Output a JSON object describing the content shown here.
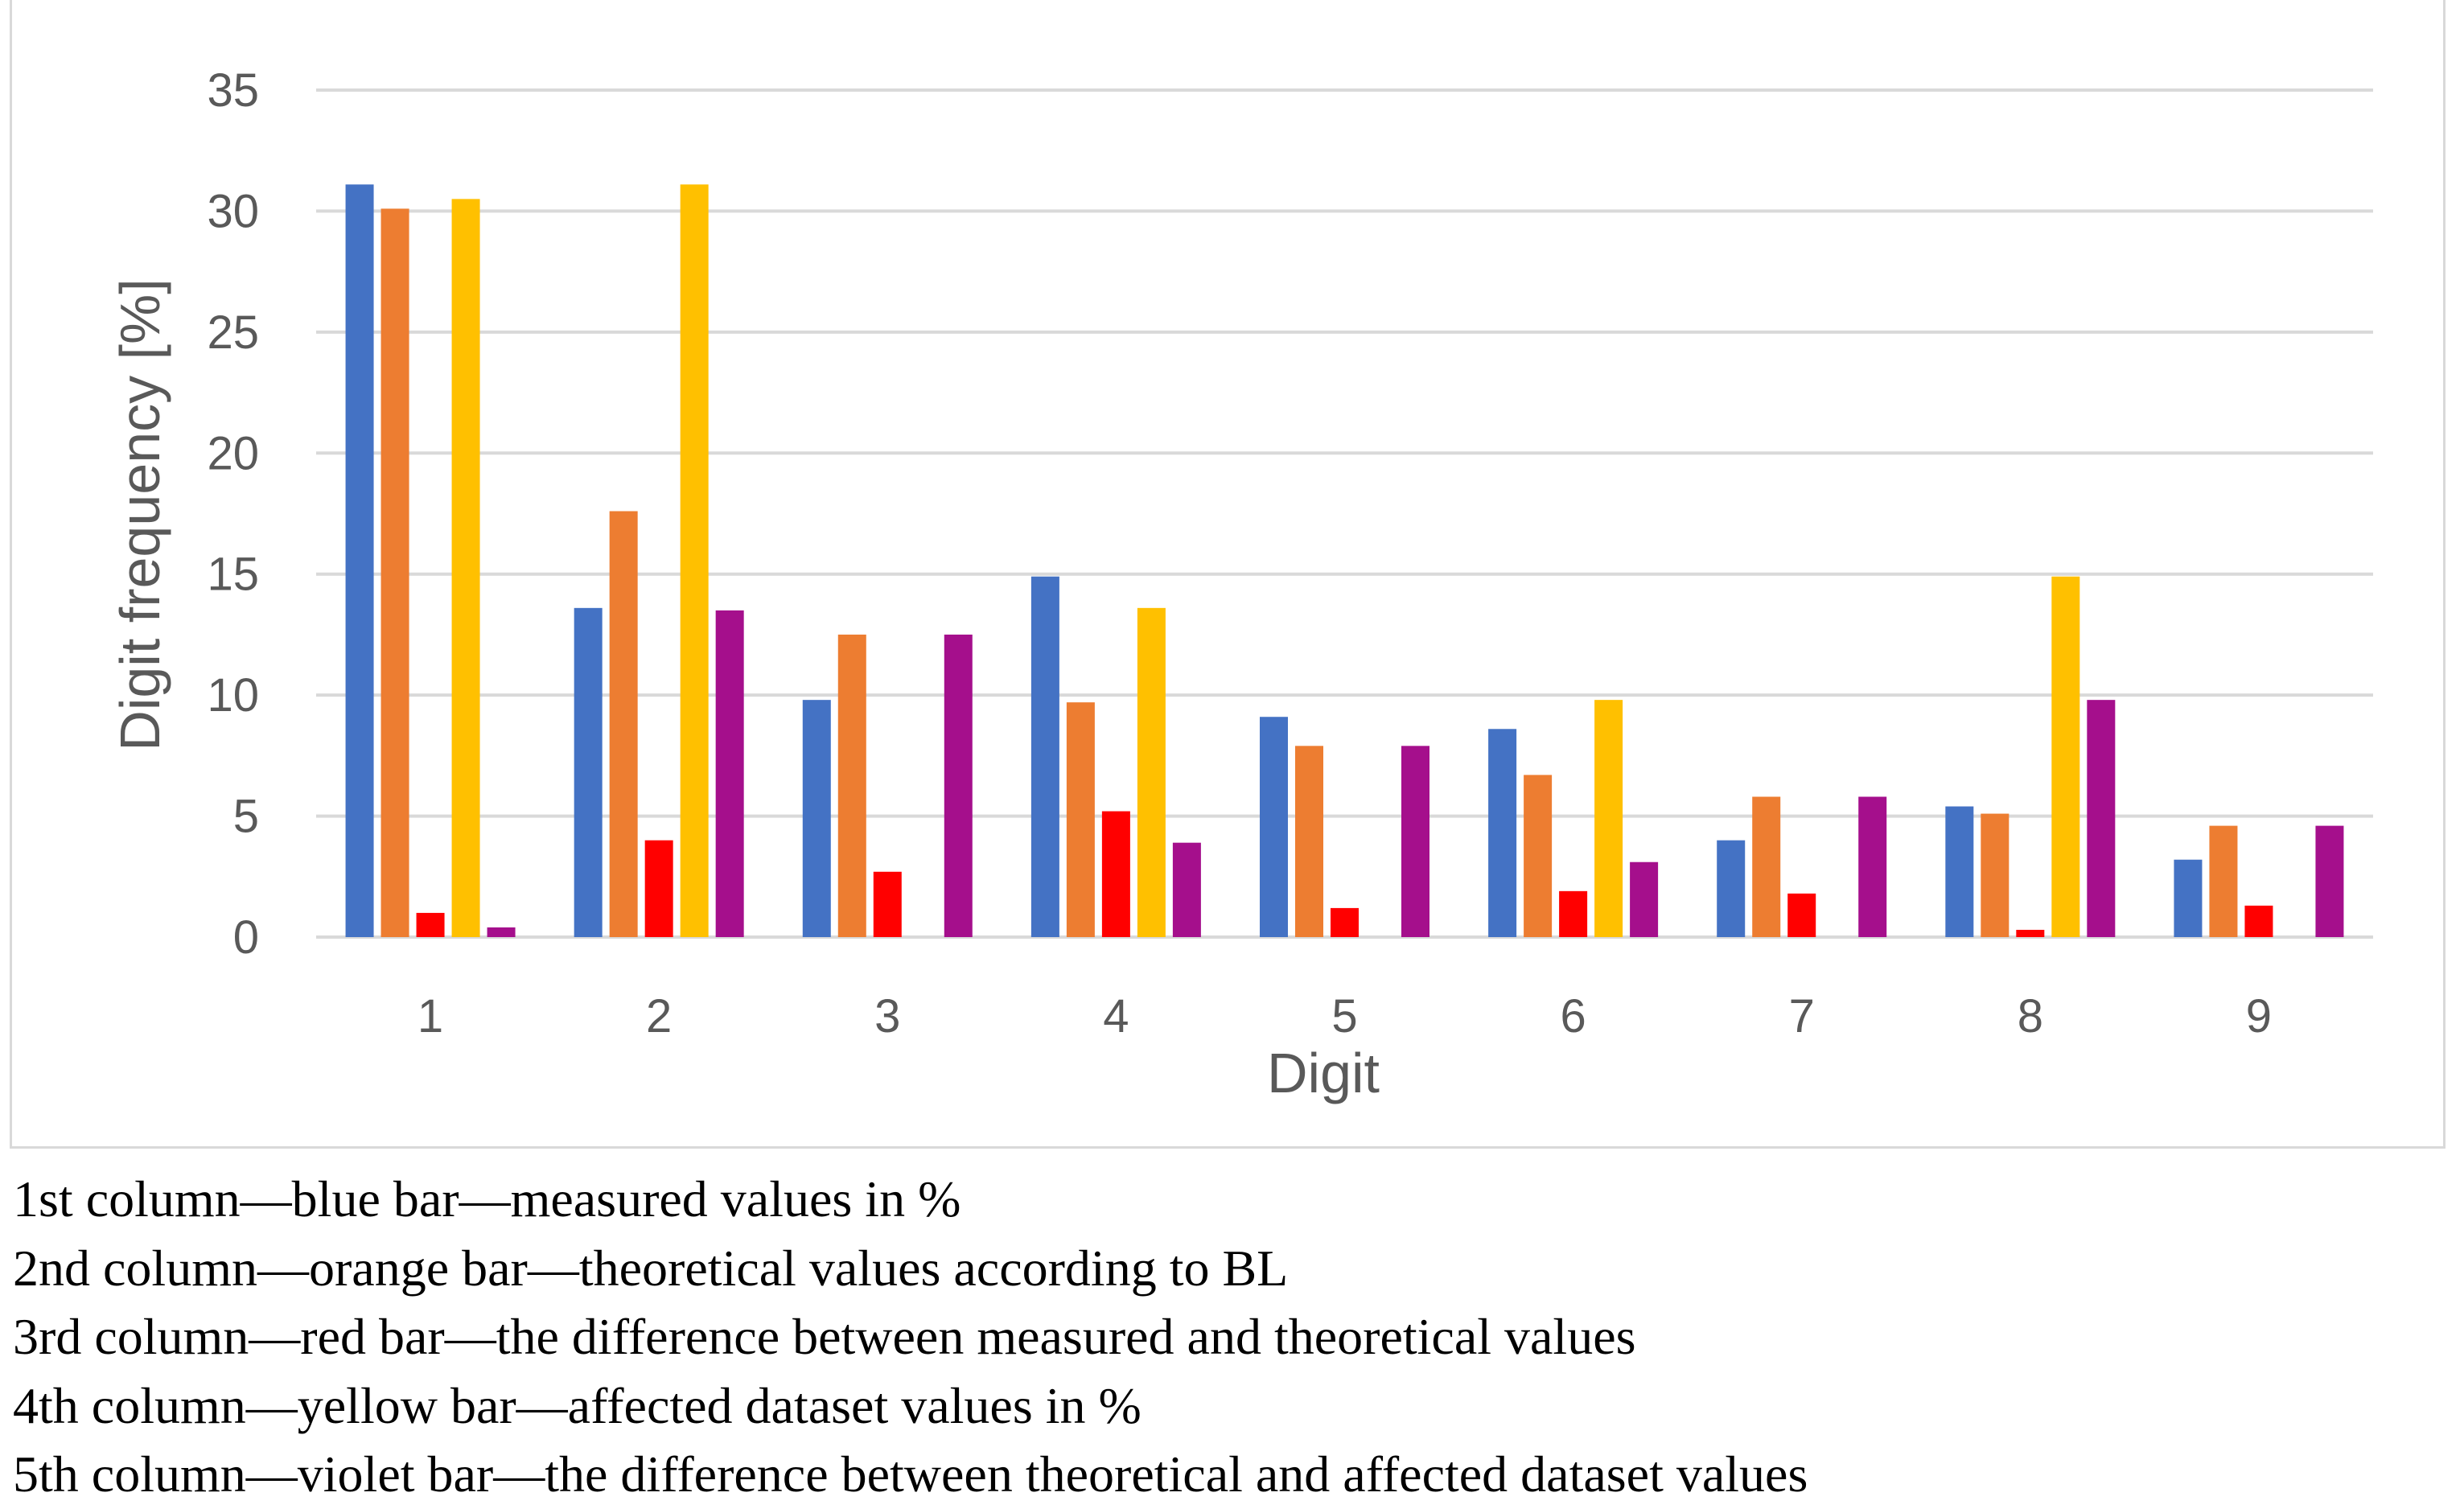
{
  "chart_data": {
    "type": "bar",
    "xlabel": "Digit",
    "ylabel": "Digit frequency [%]",
    "ylim": [
      0,
      35
    ],
    "yticks": [
      0,
      5,
      10,
      15,
      20,
      25,
      30,
      35
    ],
    "grid": true,
    "categories": [
      "1",
      "2",
      "3",
      "4",
      "5",
      "6",
      "7",
      "8",
      "9"
    ],
    "series": [
      {
        "name": "measured values in %",
        "color": "#4472c4",
        "values": [
          31.1,
          13.6,
          9.8,
          14.9,
          9.1,
          8.6,
          4.0,
          5.4,
          3.2
        ]
      },
      {
        "name": "theoretical values according to BL",
        "color": "#ed7d31",
        "values": [
          30.1,
          17.6,
          12.5,
          9.7,
          7.9,
          6.7,
          5.8,
          5.1,
          4.6
        ]
      },
      {
        "name": "the difference between measured and theoretical values",
        "color": "#ff0000",
        "values": [
          1.0,
          4.0,
          2.7,
          5.2,
          1.2,
          1.9,
          1.8,
          0.3,
          1.3
        ]
      },
      {
        "name": "affected dataset values in %",
        "color": "#ffc000",
        "values": [
          30.5,
          31.1,
          0,
          13.6,
          0,
          9.8,
          0,
          14.9,
          0
        ]
      },
      {
        "name": "the difference between theoretical and affected dataset values",
        "color": "#a50f8c",
        "values": [
          0.4,
          13.5,
          12.5,
          3.9,
          7.9,
          3.1,
          5.8,
          9.8,
          4.6
        ]
      }
    ]
  },
  "legend": {
    "lines": [
      "1st column—blue bar—measured values in %",
      "2nd column—orange bar—theoretical values according to BL",
      "3rd column—red bar—the difference between measured and theoretical values",
      "4th column—yellow bar—affected dataset values in %",
      "5th column—violet bar—the difference between theoretical and affected dataset values"
    ]
  }
}
